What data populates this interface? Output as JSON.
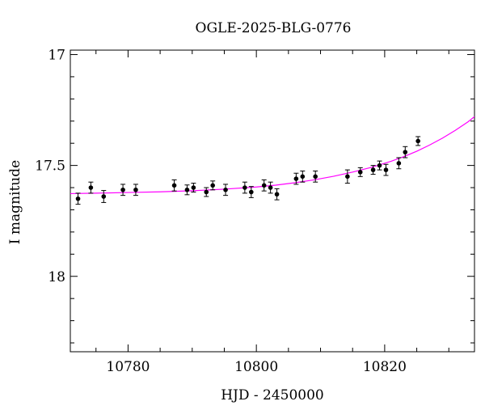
{
  "chart_data": {
    "type": "scatter",
    "title": "OGLE-2025-BLG-0776",
    "xlabel": "HJD - 2450000",
    "ylabel": "I magnitude",
    "xlim": [
      10771,
      10834
    ],
    "ylim": [
      18.34,
      16.98
    ],
    "y_inverted": true,
    "grid": false,
    "x_major_ticks": [
      10780,
      10800,
      10820
    ],
    "x_tick_labels": [
      "10780",
      "10800",
      "10820"
    ],
    "x_minor_step": 5,
    "y_major_ticks": [
      17,
      17.5,
      18
    ],
    "y_tick_labels": [
      "17",
      "17.5",
      "18"
    ],
    "y_minor_step": 0.1,
    "colors": {
      "points": "#000000",
      "errorbars": "#000000",
      "model": "#ff00ff"
    },
    "series": [
      {
        "kind": "points_with_errorbars",
        "x": [
          10772.2,
          10774.2,
          10776.2,
          10779.2,
          10781.2,
          10787.2,
          10789.2,
          10790.2,
          10792.2,
          10793.2,
          10795.2,
          10798.2,
          10799.2,
          10801.2,
          10802.2,
          10803.2,
          10806.2,
          10807.2,
          10809.2,
          10814.2,
          10816.2,
          10818.2,
          10819.2,
          10820.2,
          10822.2,
          10823.2,
          10825.2
        ],
        "y": [
          17.65,
          17.6,
          17.64,
          17.61,
          17.61,
          17.59,
          17.61,
          17.6,
          17.62,
          17.59,
          17.61,
          17.6,
          17.62,
          17.59,
          17.6,
          17.63,
          17.56,
          17.55,
          17.55,
          17.55,
          17.53,
          17.52,
          17.5,
          17.52,
          17.49,
          17.44,
          17.39
        ],
        "yerr": [
          0.025,
          0.025,
          0.027,
          0.025,
          0.025,
          0.025,
          0.022,
          0.02,
          0.02,
          0.02,
          0.025,
          0.025,
          0.025,
          0.025,
          0.025,
          0.025,
          0.025,
          0.025,
          0.025,
          0.03,
          0.02,
          0.02,
          0.02,
          0.025,
          0.025,
          0.025,
          0.02
        ]
      },
      {
        "kind": "model_curve",
        "x": [
          10771,
          10775,
          10780,
          10785,
          10790,
          10795,
          10800,
          10803,
          10806,
          10809,
          10812,
          10815,
          10818,
          10821,
          10823,
          10825,
          10827,
          10829,
          10831,
          10833,
          10834
        ],
        "y": [
          17.627,
          17.625,
          17.622,
          17.619,
          17.614,
          17.607,
          17.597,
          17.589,
          17.578,
          17.565,
          17.549,
          17.53,
          17.508,
          17.481,
          17.46,
          17.436,
          17.408,
          17.377,
          17.342,
          17.303,
          17.28
        ]
      }
    ]
  }
}
